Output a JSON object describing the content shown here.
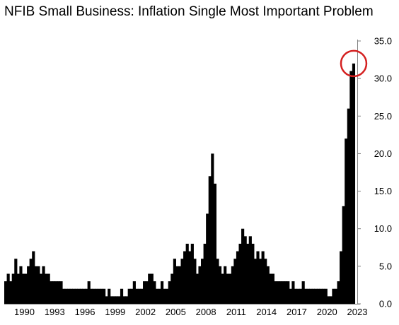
{
  "chart_data": {
    "type": "bar",
    "title": "NFIB Small Business: Inflation Single Most Important Problem",
    "xlabel": "",
    "ylabel": "",
    "x_ticks": [
      "1990",
      "1993",
      "1996",
      "1999",
      "2002",
      "2005",
      "2008",
      "2011",
      "2014",
      "2017",
      "2020",
      "2023"
    ],
    "y_ticks": [
      "0.0",
      "5.0",
      "10.0",
      "15.0",
      "20.0",
      "25.0",
      "30.0",
      "35.0"
    ],
    "ylim": [
      0,
      35
    ],
    "xlim": [
      1988.0,
      2023.0
    ],
    "y_axis_position": "right",
    "grid": false,
    "bar_color": "#000000",
    "highlight": {
      "shape": "circle",
      "color": "#d42020",
      "target_year": 2022.4
    },
    "x": [
      1988.0,
      1988.25,
      1988.5,
      1988.75,
      1989.0,
      1989.25,
      1989.5,
      1989.75,
      1990.0,
      1990.25,
      1990.5,
      1990.75,
      1991.0,
      1991.25,
      1991.5,
      1991.75,
      1992.0,
      1992.25,
      1992.5,
      1992.75,
      1993.0,
      1993.25,
      1993.5,
      1993.75,
      1994.0,
      1994.25,
      1994.5,
      1994.75,
      1995.0,
      1995.25,
      1995.5,
      1995.75,
      1996.0,
      1996.25,
      1996.5,
      1996.75,
      1997.0,
      1997.25,
      1997.5,
      1997.75,
      1998.0,
      1998.25,
      1998.5,
      1998.75,
      1999.0,
      1999.25,
      1999.5,
      1999.75,
      2000.0,
      2000.25,
      2000.5,
      2000.75,
      2001.0,
      2001.25,
      2001.5,
      2001.75,
      2002.0,
      2002.25,
      2002.5,
      2002.75,
      2003.0,
      2003.25,
      2003.5,
      2003.75,
      2004.0,
      2004.25,
      2004.5,
      2004.75,
      2005.0,
      2005.25,
      2005.5,
      2005.75,
      2006.0,
      2006.25,
      2006.5,
      2006.75,
      2007.0,
      2007.25,
      2007.5,
      2007.75,
      2008.0,
      2008.25,
      2008.5,
      2008.75,
      2009.0,
      2009.25,
      2009.5,
      2009.75,
      2010.0,
      2010.25,
      2010.5,
      2010.75,
      2011.0,
      2011.25,
      2011.5,
      2011.75,
      2012.0,
      2012.25,
      2012.5,
      2012.75,
      2013.0,
      2013.25,
      2013.5,
      2013.75,
      2014.0,
      2014.25,
      2014.5,
      2014.75,
      2015.0,
      2015.25,
      2015.5,
      2015.75,
      2016.0,
      2016.25,
      2016.5,
      2016.75,
      2017.0,
      2017.25,
      2017.5,
      2017.75,
      2018.0,
      2018.25,
      2018.5,
      2018.75,
      2019.0,
      2019.25,
      2019.5,
      2019.75,
      2020.0,
      2020.25,
      2020.5,
      2020.75,
      2021.0,
      2021.25,
      2021.5,
      2021.75,
      2022.0,
      2022.25,
      2022.5
    ],
    "values": [
      3,
      4,
      3,
      4,
      6,
      4,
      5,
      4,
      4,
      5,
      6,
      7,
      5,
      5,
      4,
      5,
      4,
      4,
      3,
      3,
      3,
      3,
      3,
      2,
      2,
      2,
      2,
      2,
      2,
      2,
      2,
      2,
      2,
      3,
      2,
      2,
      2,
      2,
      2,
      2,
      1,
      2,
      1,
      1,
      1,
      1,
      2,
      1,
      1,
      2,
      2,
      3,
      2,
      2,
      2,
      3,
      3,
      4,
      4,
      3,
      2,
      2,
      3,
      2,
      2,
      3,
      4,
      6,
      5,
      5,
      6,
      7,
      8,
      7,
      8,
      6,
      4,
      5,
      6,
      8,
      12,
      17,
      20,
      16,
      6,
      5,
      4,
      5,
      4,
      4,
      5,
      6,
      7,
      8,
      10,
      9,
      8,
      9,
      8,
      6,
      7,
      6,
      7,
      6,
      5,
      4,
      4,
      3,
      3,
      3,
      3,
      3,
      3,
      2,
      3,
      2,
      2,
      2,
      3,
      2,
      2,
      2,
      2,
      2,
      2,
      2,
      2,
      2,
      1,
      1,
      2,
      2,
      3,
      7,
      13,
      22,
      26,
      31,
      32
    ]
  }
}
